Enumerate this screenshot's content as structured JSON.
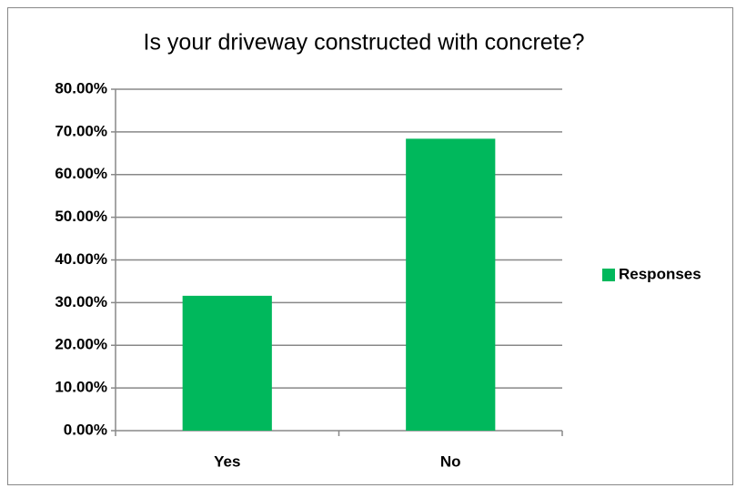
{
  "chart_data": {
    "type": "bar",
    "title": "Is your driveway constructed with concrete?",
    "categories": [
      "Yes",
      "No"
    ],
    "series": [
      {
        "name": "Responses",
        "color": "#00b85c",
        "values": [
          31.6,
          68.4
        ]
      }
    ],
    "ylim": [
      0,
      80
    ],
    "yticks": [
      {
        "value": 0,
        "label": "0.00%"
      },
      {
        "value": 10,
        "label": "10.00%"
      },
      {
        "value": 20,
        "label": "20.00%"
      },
      {
        "value": 30,
        "label": "30.00%"
      },
      {
        "value": 40,
        "label": "40.00%"
      },
      {
        "value": 50,
        "label": "50.00%"
      },
      {
        "value": 60,
        "label": "60.00%"
      },
      {
        "value": 70,
        "label": "70.00%"
      },
      {
        "value": 80,
        "label": "80.00%"
      }
    ],
    "grid": true,
    "legend": "right"
  }
}
